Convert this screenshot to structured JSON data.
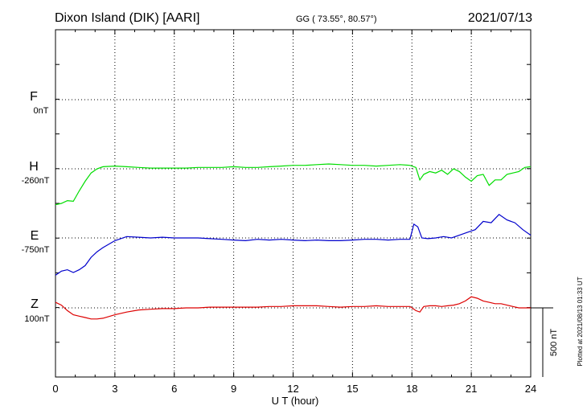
{
  "header": {
    "station": "Dixon Island (DIK)  [AARI]",
    "coords": "GG ( 73.55°,  80.57°)",
    "date": "2021/07/13"
  },
  "side_note": "Plotted at 2021/08/13 01:33 UT",
  "scale_label": "500 nT",
  "colors": {
    "F": "#f5a300",
    "H": "#00dd00",
    "E": "#0000cc",
    "Z": "#dd0000"
  },
  "chart_data": {
    "type": "line",
    "xlabel": "U T (hour)",
    "xlim": [
      0,
      24
    ],
    "xticks": [
      0,
      3,
      6,
      9,
      12,
      15,
      18,
      21,
      24
    ],
    "xtick_labels": [
      "0",
      "3",
      "6",
      "9",
      "12",
      "15",
      "18",
      "21",
      "24"
    ],
    "channels": [
      {
        "name": "F",
        "base": "0nT",
        "values": []
      },
      {
        "name": "H",
        "base": "-260nT",
        "x": [
          0,
          0.3,
          0.6,
          0.9,
          1.2,
          1.5,
          1.8,
          2.1,
          2.4,
          3,
          3.6,
          4.2,
          4.8,
          5.4,
          6,
          6.6,
          7.2,
          7.8,
          8.4,
          9,
          9.6,
          10.2,
          10.8,
          11.4,
          12,
          12.6,
          13.2,
          13.8,
          14.4,
          15,
          15.6,
          16.2,
          16.8,
          17.4,
          17.9,
          18.2,
          18.4,
          18.6,
          18.9,
          19.2,
          19.5,
          19.8,
          20.1,
          20.4,
          20.7,
          21,
          21.3,
          21.6,
          21.9,
          22.2,
          22.5,
          22.8,
          23.1,
          23.4,
          23.7,
          24
        ],
        "values": [
          -260,
          -250,
          -230,
          -235,
          -160,
          -90,
          -30,
          0,
          15,
          20,
          15,
          10,
          5,
          5,
          5,
          5,
          10,
          10,
          10,
          15,
          10,
          10,
          15,
          20,
          25,
          25,
          30,
          35,
          30,
          25,
          25,
          20,
          25,
          30,
          25,
          10,
          -80,
          -40,
          -20,
          -30,
          -10,
          -40,
          0,
          -20,
          -60,
          -90,
          -50,
          -40,
          -120,
          -80,
          -80,
          -40,
          -30,
          -20,
          10,
          15
        ]
      },
      {
        "name": "E",
        "base": "-750nT",
        "x": [
          0,
          0.3,
          0.6,
          0.9,
          1.2,
          1.5,
          1.8,
          2.1,
          2.4,
          3,
          3.6,
          4.2,
          4.8,
          5.4,
          6,
          6.6,
          7.2,
          7.8,
          8.4,
          9,
          9.6,
          10.2,
          10.8,
          11.4,
          12,
          12.6,
          13.2,
          13.8,
          14.4,
          15,
          15.6,
          16.2,
          16.8,
          17.4,
          17.9,
          18.1,
          18.3,
          18.5,
          18.8,
          19.2,
          19.6,
          20,
          20.4,
          20.8,
          21.2,
          21.6,
          22,
          22.4,
          22.8,
          23.2,
          23.6,
          24
        ],
        "values": [
          -270,
          -240,
          -230,
          -250,
          -230,
          -200,
          -140,
          -100,
          -70,
          -20,
          10,
          5,
          0,
          5,
          0,
          0,
          0,
          -5,
          -10,
          -15,
          -20,
          -10,
          -15,
          -10,
          -15,
          -20,
          -15,
          -20,
          -20,
          -15,
          -10,
          -10,
          -15,
          -10,
          -10,
          100,
          80,
          0,
          -5,
          0,
          10,
          0,
          20,
          40,
          60,
          120,
          110,
          170,
          130,
          110,
          60,
          20
        ]
      },
      {
        "name": "Z",
        "base": "100nT",
        "x": [
          0,
          0.3,
          0.6,
          0.9,
          1.2,
          1.5,
          1.8,
          2.1,
          2.4,
          3,
          3.6,
          4.2,
          4.8,
          5.4,
          6,
          6.6,
          7.2,
          7.8,
          8.4,
          9,
          9.6,
          10.2,
          10.8,
          11.4,
          12,
          12.6,
          13.2,
          13.8,
          14.4,
          15,
          15.6,
          16.2,
          16.8,
          17.4,
          17.9,
          18.2,
          18.4,
          18.6,
          18.9,
          19.2,
          19.5,
          19.8,
          20.1,
          20.4,
          20.7,
          21,
          21.3,
          21.6,
          21.9,
          22.2,
          22.5,
          22.8,
          23.1,
          23.4,
          23.7,
          24
        ],
        "values": [
          40,
          20,
          -20,
          -50,
          -60,
          -70,
          -80,
          -80,
          -75,
          -50,
          -30,
          -15,
          -10,
          -5,
          -5,
          0,
          0,
          5,
          5,
          5,
          5,
          5,
          10,
          10,
          15,
          15,
          15,
          10,
          5,
          10,
          10,
          15,
          10,
          10,
          10,
          -20,
          -30,
          10,
          15,
          15,
          10,
          15,
          20,
          30,
          50,
          80,
          70,
          50,
          40,
          30,
          30,
          20,
          10,
          0,
          0,
          0
        ]
      }
    ],
    "grid": true
  }
}
